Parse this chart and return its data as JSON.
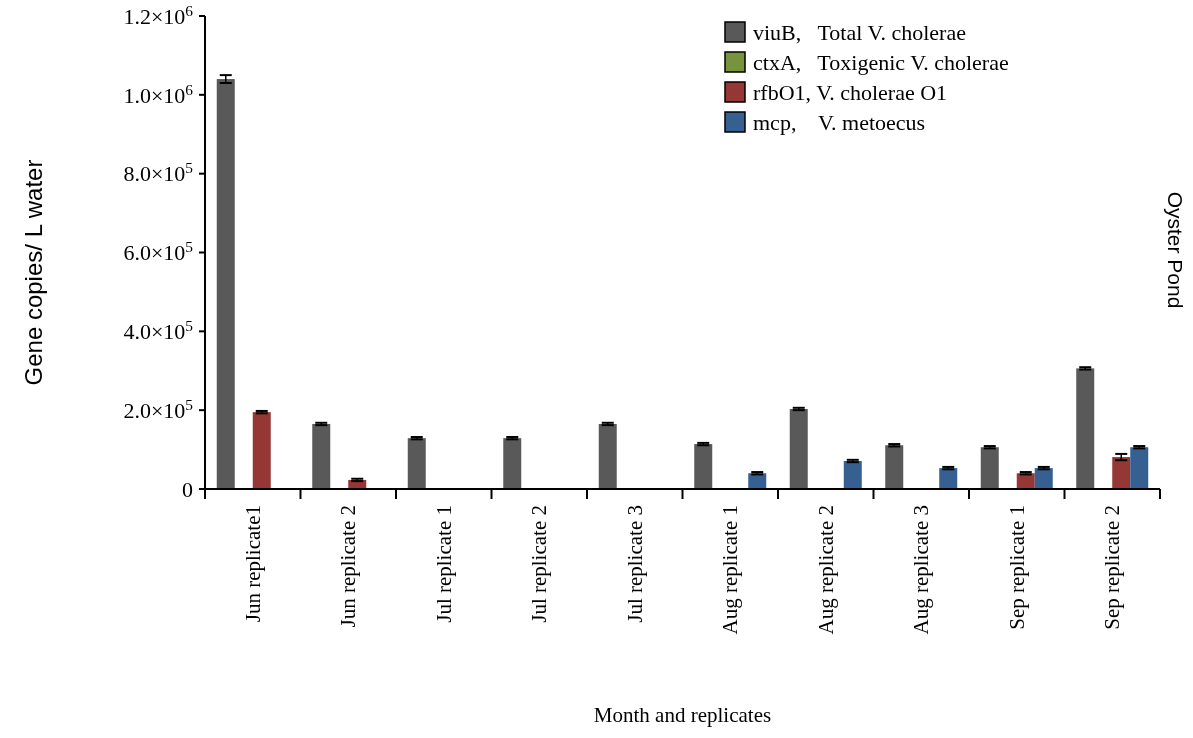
{
  "chart_data": {
    "type": "bar",
    "title": "Oyster Pond",
    "xlabel": "Month and replicates",
    "ylabel": "Gene copies/ L water",
    "categories": [
      "Jun replicate1",
      "Jun replicate 2",
      "Jul replicate 1",
      "Jul replicate 2",
      "Jul replicate 3",
      "Aug replicate 1",
      "Aug replicate 2",
      "Aug replicate 3",
      "Sep replicate 1",
      "Sep replicate 2"
    ],
    "series": [
      {
        "name": "viuB,   Total V. cholerae",
        "color": "#595959",
        "values": [
          1040000,
          165000,
          129000,
          129000,
          165000,
          114000,
          203000,
          111000,
          106000,
          306000
        ],
        "errors": [
          10000,
          3000,
          3000,
          3000,
          3000,
          3000,
          3000,
          3000,
          3000,
          3000
        ]
      },
      {
        "name": "ctxA,   Toxigenic V. cholerae",
        "color": "#77933c",
        "values": [
          0,
          0,
          0,
          0,
          0,
          0,
          0,
          0,
          0,
          0
        ]
      },
      {
        "name": "rfbO1, V. cholerae O1",
        "color": "#953735",
        "values": [
          195000,
          23000,
          0,
          0,
          0,
          0,
          0,
          0,
          40000,
          81000
        ],
        "errors": [
          3000,
          3000,
          null,
          null,
          null,
          null,
          null,
          null,
          3000,
          8000
        ]
      },
      {
        "name": "mcp,    V. metoecus",
        "color": "#376092",
        "values": [
          0,
          0,
          0,
          0,
          0,
          40000,
          71000,
          53000,
          53000,
          106000
        ],
        "errors": [
          null,
          null,
          null,
          null,
          null,
          3000,
          3000,
          3000,
          3000,
          3000
        ]
      }
    ],
    "ylim": [
      0,
      1200000
    ],
    "yticks": [
      0,
      {
        "value": 200000,
        "label": "2.0×10$^{5}$"
      },
      {
        "value": 400000,
        "label": "4.0×10$^{5}$"
      },
      {
        "value": 600000,
        "label": "6.0×10$^{5}$"
      },
      {
        "value": 800000,
        "label": "8.0×10$^{5}$"
      },
      {
        "value": 1000000,
        "label": "1.0×10$^{6}$"
      },
      {
        "value": 1200000,
        "label": "1.2×10$^{6}$"
      }
    ],
    "grid": false,
    "legend": "top right"
  }
}
